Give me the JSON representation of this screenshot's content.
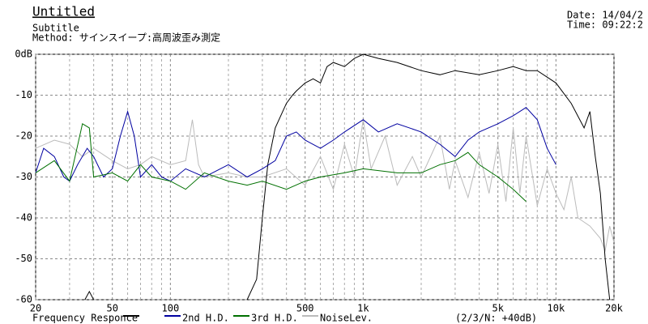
{
  "header": {
    "title": "Untitled",
    "subtitle": "Subtitle",
    "method": "Method: サインスイープ:高周波歪み測定",
    "date": "Date: 14/04/2",
    "time": "Time: 09:22:2"
  },
  "chart_data": {
    "type": "line",
    "xscale": "log",
    "grid": true,
    "xlim": [
      20,
      20000
    ],
    "ylim": [
      -60,
      0
    ],
    "xticks": [
      20,
      50,
      100,
      500,
      {
        "value": 1000,
        "label": "1k"
      },
      {
        "value": 5000,
        "label": "5k"
      },
      {
        "value": 10000,
        "label": "10k"
      },
      {
        "value": 20000,
        "label": "20k"
      }
    ],
    "x_minor_grid": [
      30,
      40,
      60,
      70,
      80,
      90,
      200,
      300,
      400,
      600,
      700,
      800,
      900,
      2000,
      3000,
      4000,
      6000,
      7000,
      8000,
      9000
    ],
    "yticks": [
      {
        "value": 0,
        "label": "0dB"
      },
      -10,
      -20,
      -30,
      -40,
      -50,
      -60
    ],
    "legend_note": "(2/3/N: +40dB)",
    "series": [
      {
        "name": "Frequency Responce",
        "color": "#000000",
        "x": [
          36,
          38,
          40,
          200,
          250,
          280,
          300,
          320,
          350,
          400,
          430,
          450,
          500,
          550,
          600,
          650,
          700,
          800,
          900,
          1000,
          1200,
          1500,
          2000,
          2500,
          3000,
          4000,
          5000,
          6000,
          7000,
          8000,
          10000,
          12000,
          14000,
          15000,
          16000,
          17000,
          18000,
          19000
        ],
        "values": [
          -60,
          -58,
          -60,
          null,
          -60,
          -55,
          -40,
          -27,
          -18,
          -12,
          -10,
          -9,
          -7,
          -6,
          -7,
          -3,
          -2,
          -3,
          -1,
          0,
          -1,
          -2,
          -4,
          -5,
          -4,
          -5,
          -4,
          -3,
          -4,
          -4,
          -7,
          -12,
          -18,
          -14,
          -25,
          -34,
          -50,
          -60
        ]
      },
      {
        "name": "2nd H.D.",
        "color": "#0000a0",
        "x": [
          20,
          22,
          25,
          28,
          30,
          33,
          37,
          40,
          45,
          50,
          55,
          60,
          65,
          70,
          80,
          90,
          100,
          120,
          150,
          200,
          250,
          300,
          350,
          400,
          450,
          500,
          600,
          700,
          800,
          1000,
          1200,
          1500,
          2000,
          2500,
          3000,
          3500,
          4000,
          5000,
          6000,
          7000,
          8000,
          9000,
          10000
        ],
        "values": [
          -29,
          -23,
          -25,
          -30,
          -31,
          -27,
          -23,
          -25,
          -30,
          -28,
          -20,
          -14,
          -20,
          -30,
          -27,
          -30,
          -31,
          -28,
          -30,
          -27,
          -30,
          -28,
          -26,
          -20,
          -19,
          -21,
          -23,
          -21,
          -19,
          -16,
          -19,
          -17,
          -19,
          -22,
          -25,
          -21,
          -19,
          -17,
          -15,
          -13,
          -16,
          -23,
          -27
        ]
      },
      {
        "name": "3rd H.D.",
        "color": "#007000",
        "x": [
          20,
          25,
          30,
          35,
          38,
          40,
          50,
          60,
          70,
          80,
          100,
          120,
          150,
          200,
          250,
          300,
          400,
          500,
          600,
          800,
          1000,
          1500,
          2000,
          2500,
          3000,
          3500,
          4000,
          5000,
          6000,
          7000
        ],
        "values": [
          -29,
          -26,
          -31,
          -17,
          -18,
          -30,
          -29,
          -31,
          -27,
          -30,
          -31,
          -33,
          -29,
          -31,
          -32,
          -31,
          -33,
          -31,
          -30,
          -29,
          -28,
          -29,
          -29,
          -27,
          -26,
          -24,
          -27,
          -30,
          -33,
          -36
        ]
      },
      {
        "name": "NoiseLev.",
        "color": "#bbbbbb",
        "x": [
          20,
          25,
          30,
          35,
          40,
          50,
          60,
          70,
          80,
          100,
          120,
          130,
          140,
          150,
          200,
          250,
          300,
          400,
          500,
          600,
          700,
          800,
          900,
          1000,
          1100,
          1300,
          1500,
          1800,
          2000,
          2500,
          2800,
          3000,
          3500,
          4000,
          4500,
          5000,
          5500,
          6000,
          6500,
          7000,
          8000,
          9000,
          10000,
          11000,
          12000,
          13000,
          15000,
          17000,
          18000,
          19000,
          20000
        ],
        "values": [
          -23,
          -21,
          -22,
          -25,
          -23,
          -26,
          -28,
          -27,
          -25,
          -27,
          -26,
          -16,
          -27,
          -30,
          -29,
          -30,
          -30,
          -28,
          -32,
          -25,
          -33,
          -22,
          -30,
          -16,
          -28,
          -20,
          -32,
          -25,
          -30,
          -20,
          -33,
          -26,
          -35,
          -24,
          -34,
          -22,
          -36,
          -18,
          -34,
          -20,
          -37,
          -28,
          -34,
          -38,
          -30,
          -40,
          -42,
          -45,
          -48,
          -42,
          -46
        ]
      }
    ]
  }
}
